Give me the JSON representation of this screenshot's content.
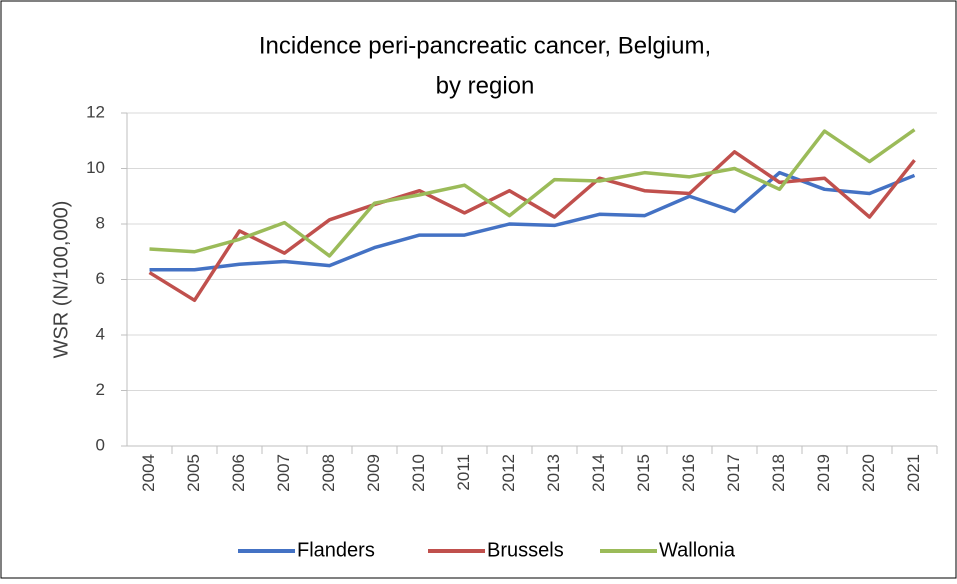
{
  "chart_data": {
    "type": "line",
    "title": [
      "Incidence peri-pancreatic cancer, Belgium,",
      "by region"
    ],
    "y_label": "WSR (N/100,000)",
    "categories": [
      "2004",
      "2005",
      "2006",
      "2007",
      "2008",
      "2009",
      "2010",
      "2011",
      "2012",
      "2013",
      "2014",
      "2015",
      "2016",
      "2017",
      "2018",
      "2019",
      "2020",
      "2021"
    ],
    "series": [
      {
        "name": "Flanders",
        "color": "#4472c4",
        "values": [
          6.35,
          6.35,
          6.55,
          6.65,
          6.5,
          7.15,
          7.6,
          7.6,
          8.0,
          7.95,
          8.35,
          8.3,
          9.0,
          8.45,
          9.85,
          9.25,
          9.1,
          9.75
        ]
      },
      {
        "name": "Brussels",
        "color": "#c0504d",
        "values": [
          6.25,
          5.25,
          7.75,
          6.95,
          8.15,
          8.7,
          9.2,
          8.4,
          9.2,
          8.25,
          9.65,
          9.2,
          9.1,
          10.6,
          9.5,
          9.65,
          8.25,
          10.3
        ]
      },
      {
        "name": "Wallonia",
        "color": "#9bbb59",
        "values": [
          7.1,
          7.0,
          7.45,
          8.05,
          6.85,
          8.75,
          9.05,
          9.4,
          8.3,
          9.6,
          9.55,
          9.85,
          9.7,
          10.0,
          9.25,
          11.35,
          10.25,
          11.4
        ]
      }
    ],
    "ylim": [
      0,
      12
    ],
    "yticks": [
      0,
      2,
      4,
      6,
      8,
      10,
      12
    ],
    "grid": true,
    "legend": "bottom"
  }
}
